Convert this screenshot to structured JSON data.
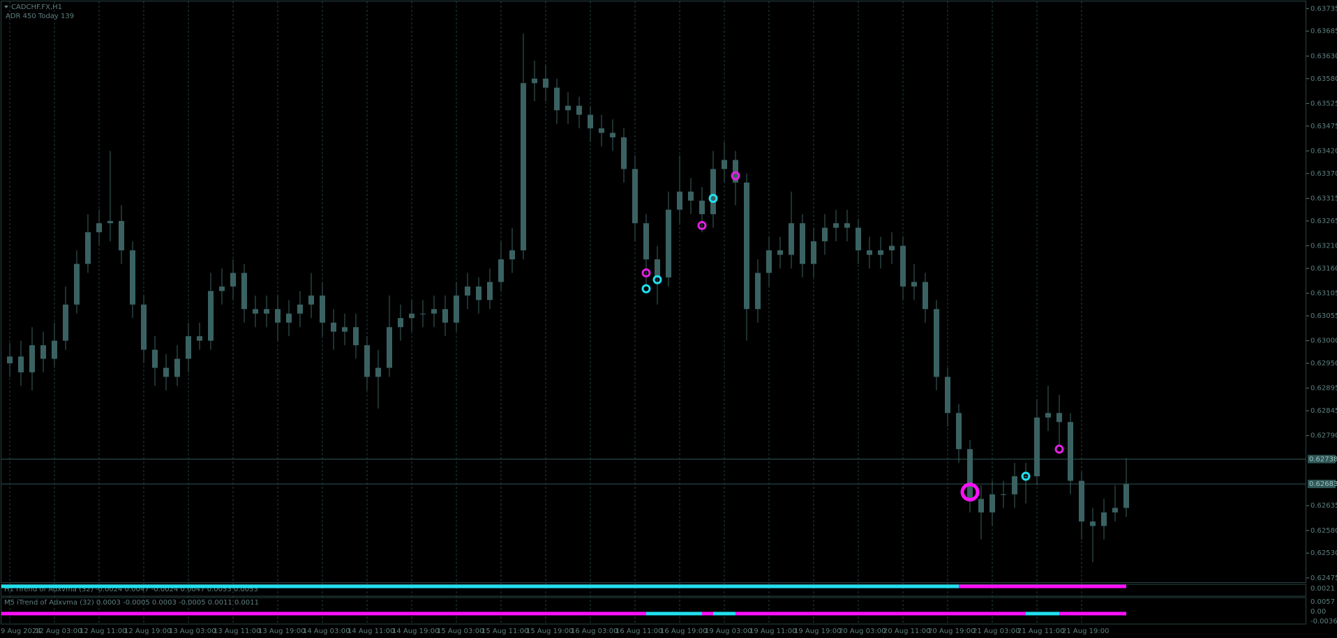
{
  "chart_data": {
    "type": "candlestick",
    "title": "CADCHF.FX,H1",
    "subtitle": "ADR 450  Today 139",
    "color": "#3b6262",
    "grid_color": "#1f4040",
    "open": [
      0.6295,
      0.62965,
      0.6293,
      0.6299,
      0.6296,
      0.63,
      0.6308,
      0.6317,
      0.6324,
      0.6326,
      0.63265,
      0.632,
      0.6308,
      0.6298,
      0.6294,
      0.6292,
      0.6296,
      0.6301,
      0.63,
      0.6311,
      0.6312,
      0.6315,
      0.6307,
      0.6306,
      0.6307,
      0.6304,
      0.6306,
      0.6308,
      0.631,
      0.6304,
      0.6302,
      0.6303,
      0.6299,
      0.6292,
      0.6294,
      0.6303,
      0.6305,
      0.6306,
      0.6306,
      0.6307,
      0.6304,
      0.631,
      0.6312,
      0.6309,
      0.6313,
      0.6318,
      0.632,
      0.6357,
      0.6358,
      0.6356,
      0.6351,
      0.6352,
      0.635,
      0.6347,
      0.6346,
      0.6345,
      0.6338,
      0.6326,
      0.6318,
      0.6314,
      0.6329,
      0.6333,
      0.6331,
      0.6328,
      0.6338,
      0.634,
      0.6335,
      0.6307,
      0.6315,
      0.632,
      0.6319,
      0.6326,
      0.6317,
      0.6322,
      0.6325,
      0.6326,
      0.6325,
      0.632,
      0.6319,
      0.632,
      0.6321,
      0.6312,
      0.6313,
      0.6307,
      0.6292,
      0.6284,
      0.6276,
      0.6265,
      0.6262,
      0.6266,
      0.6266,
      0.627,
      0.627,
      0.6283,
      0.6284,
      0.6282,
      0.6269,
      0.626,
      0.6259,
      0.6262,
      0.6263
    ],
    "high": [
      0.62995,
      0.63,
      0.6303,
      0.6302,
      0.6304,
      0.6312,
      0.632,
      0.6328,
      0.6329,
      0.6342,
      0.633,
      0.6322,
      0.631,
      0.6301,
      0.6297,
      0.6299,
      0.6304,
      0.6304,
      0.6315,
      0.6316,
      0.6318,
      0.6317,
      0.631,
      0.631,
      0.631,
      0.6309,
      0.6311,
      0.6315,
      0.6313,
      0.6307,
      0.6306,
      0.6306,
      0.6301,
      0.6298,
      0.631,
      0.6308,
      0.6309,
      0.6309,
      0.631,
      0.631,
      0.6313,
      0.6315,
      0.6314,
      0.6316,
      0.6322,
      0.6325,
      0.6368,
      0.6362,
      0.6361,
      0.6358,
      0.6355,
      0.6354,
      0.6352,
      0.635,
      0.6349,
      0.6347,
      0.6341,
      0.6328,
      0.6321,
      0.6333,
      0.6341,
      0.6336,
      0.6334,
      0.6342,
      0.6344,
      0.6342,
      0.6337,
      0.6318,
      0.6323,
      0.6323,
      0.6333,
      0.6328,
      0.6325,
      0.6328,
      0.6329,
      0.6329,
      0.6327,
      0.6323,
      0.6323,
      0.6324,
      0.6323,
      0.6317,
      0.6315,
      0.6309,
      0.6294,
      0.6286,
      0.6278,
      0.6268,
      0.6269,
      0.6269,
      0.6273,
      0.6273,
      0.6287,
      0.629,
      0.6288,
      0.6284,
      0.6271,
      0.6263,
      0.6265,
      0.6268,
      0.6274
    ],
    "low": [
      0.6292,
      0.629,
      0.6289,
      0.6293,
      0.6294,
      0.6298,
      0.6306,
      0.6315,
      0.6321,
      0.6322,
      0.6317,
      0.6305,
      0.6295,
      0.629,
      0.6289,
      0.629,
      0.6293,
      0.6298,
      0.6298,
      0.6308,
      0.6309,
      0.6304,
      0.6303,
      0.6303,
      0.63,
      0.6301,
      0.6303,
      0.6305,
      0.6301,
      0.6298,
      0.6299,
      0.6296,
      0.6289,
      0.6285,
      0.6292,
      0.63,
      0.6302,
      0.6303,
      0.6303,
      0.6301,
      0.6302,
      0.6307,
      0.6306,
      0.6307,
      0.6311,
      0.6315,
      0.6318,
      0.6353,
      0.6353,
      0.6348,
      0.6348,
      0.6347,
      0.6344,
      0.6343,
      0.6342,
      0.6335,
      0.6322,
      0.6312,
      0.6308,
      0.6312,
      0.6326,
      0.6328,
      0.6324,
      0.6325,
      0.6335,
      0.633,
      0.63,
      0.6304,
      0.6312,
      0.6316,
      0.6316,
      0.6314,
      0.6314,
      0.6319,
      0.6322,
      0.6322,
      0.6317,
      0.6316,
      0.6316,
      0.6317,
      0.6309,
      0.6309,
      0.6304,
      0.6289,
      0.6281,
      0.6273,
      0.6262,
      0.6256,
      0.6259,
      0.6263,
      0.6263,
      0.6264,
      0.6268,
      0.628,
      0.6277,
      0.6266,
      0.6256,
      0.6251,
      0.6256,
      0.626,
      0.6261
    ],
    "close": [
      0.62965,
      0.6293,
      0.6299,
      0.6296,
      0.63,
      0.6308,
      0.6317,
      0.6324,
      0.6326,
      0.63265,
      0.632,
      0.6308,
      0.6298,
      0.6294,
      0.6292,
      0.6296,
      0.6301,
      0.63,
      0.6311,
      0.6312,
      0.6315,
      0.6307,
      0.6306,
      0.6307,
      0.6304,
      0.6306,
      0.6308,
      0.631,
      0.6304,
      0.6302,
      0.6303,
      0.6299,
      0.6292,
      0.6294,
      0.6303,
      0.6305,
      0.6306,
      0.6306,
      0.6307,
      0.6304,
      0.631,
      0.6312,
      0.6309,
      0.6313,
      0.6318,
      0.632,
      0.6357,
      0.6358,
      0.6356,
      0.6351,
      0.6352,
      0.635,
      0.6347,
      0.6346,
      0.6345,
      0.6338,
      0.6326,
      0.6318,
      0.6314,
      0.6329,
      0.6333,
      0.6331,
      0.6328,
      0.6338,
      0.634,
      0.6335,
      0.6307,
      0.6315,
      0.632,
      0.6319,
      0.6326,
      0.6317,
      0.6322,
      0.6325,
      0.6326,
      0.6325,
      0.632,
      0.6319,
      0.632,
      0.6321,
      0.6312,
      0.6313,
      0.6307,
      0.6292,
      0.6284,
      0.6276,
      0.6265,
      0.6262,
      0.6266,
      0.6266,
      0.627,
      0.627,
      0.6283,
      0.6284,
      0.6282,
      0.6269,
      0.626,
      0.6259,
      0.6262,
      0.6263,
      0.62683
    ],
    "ylim": [
      0.62464,
      0.63754
    ],
    "yticks": [
      0.63735,
      0.63685,
      {
        "value": 0.6363,
        "label": "0.63630"
      },
      {
        "value": 0.6358,
        "label": "0.63580"
      },
      0.63525,
      0.63475,
      {
        "value": 0.6342,
        "label": "0.63420"
      },
      {
        "value": 0.6337,
        "label": "0.63370"
      },
      0.63315,
      0.63265,
      {
        "value": 0.6321,
        "label": "0.63210"
      },
      {
        "value": 0.6316,
        "label": "0.63160"
      },
      0.63105,
      0.63055,
      {
        "value": 0.63,
        "label": "0.63000"
      },
      {
        "value": 0.6295,
        "label": "0.62950"
      },
      0.62895,
      0.62845,
      {
        "value": 0.6279,
        "label": "0.62790"
      },
      0.62635,
      {
        "value": 0.6258,
        "label": "0.62580"
      },
      {
        "value": 0.6253,
        "label": "0.62530"
      },
      0.62475
    ],
    "price_lines": [
      {
        "value": 0.62738,
        "label": "0.62738"
      },
      {
        "value": 0.62683,
        "label": "0.62683"
      }
    ],
    "x_labels": [
      "9 Aug 2024",
      "12 Aug 03:00",
      "12 Aug 11:00",
      "12 Aug 19:00",
      "13 Aug 03:00",
      "13 Aug 11:00",
      "13 Aug 19:00",
      "14 Aug 03:00",
      "14 Aug 11:00",
      "14 Aug 19:00",
      "15 Aug 03:00",
      "15 Aug 11:00",
      "15 Aug 19:00",
      "16 Aug 03:00",
      "16 Aug 11:00",
      "16 Aug 19:00",
      "19 Aug 03:00",
      "19 Aug 11:00",
      "19 Aug 19:00",
      "20 Aug 03:00",
      "20 Aug 11:00",
      "20 Aug 19:00",
      "21 Aug 03:00",
      "21 Aug 11:00",
      "21 Aug 19:00"
    ],
    "markers": [
      {
        "index": 57,
        "price": 0.6315,
        "color": "#e020e0",
        "size": "small"
      },
      {
        "index": 57,
        "price": 0.63115,
        "color": "#20e0f0",
        "size": "small"
      },
      {
        "index": 58,
        "price": 0.63135,
        "color": "#20e0f0",
        "size": "small"
      },
      {
        "index": 62,
        "price": 0.63255,
        "color": "#e020e0",
        "size": "small"
      },
      {
        "index": 63,
        "price": 0.63315,
        "color": "#20e0f0",
        "size": "small"
      },
      {
        "index": 65,
        "price": 0.63365,
        "color": "#e020e0",
        "size": "small"
      },
      {
        "index": 86,
        "price": 0.62665,
        "color": "#ff10ff",
        "size": "large"
      },
      {
        "index": 91,
        "price": 0.627,
        "color": "#20e0f0",
        "size": "small"
      },
      {
        "index": 94,
        "price": 0.6276,
        "color": "#e020e0",
        "size": "small"
      }
    ],
    "indicators": [
      {
        "name": "H1 iTrend of Adxvma (32) -0.0024 0.0047 -0.0024 0.0047 0.0053 0.0053",
        "axis_labels": [
          "0.0021"
        ],
        "segments": [
          {
            "from": 0,
            "to": 85,
            "color": "#20e0f0"
          },
          {
            "from": 85,
            "to": 100,
            "color": "#ff10ff"
          }
        ]
      },
      {
        "name": "M5 iTrend of Adxvma (32) 0.0003 -0.0005 0.0003 -0.0005 0.0011 0.0011",
        "axis_labels": [
          "0.0057",
          "0.00",
          "-0.0036"
        ],
        "segments": [
          {
            "from": 0,
            "to": 57,
            "color": "#ff10ff"
          },
          {
            "from": 57,
            "to": 62,
            "color": "#20e0f0"
          },
          {
            "from": 62,
            "to": 63,
            "color": "#ff10ff"
          },
          {
            "from": 63,
            "to": 65,
            "color": "#20e0f0"
          },
          {
            "from": 65,
            "to": 91,
            "color": "#ff10ff"
          },
          {
            "from": 91,
            "to": 94,
            "color": "#20e0f0"
          },
          {
            "from": 94,
            "to": 100,
            "color": "#ff10ff"
          }
        ]
      }
    ]
  }
}
